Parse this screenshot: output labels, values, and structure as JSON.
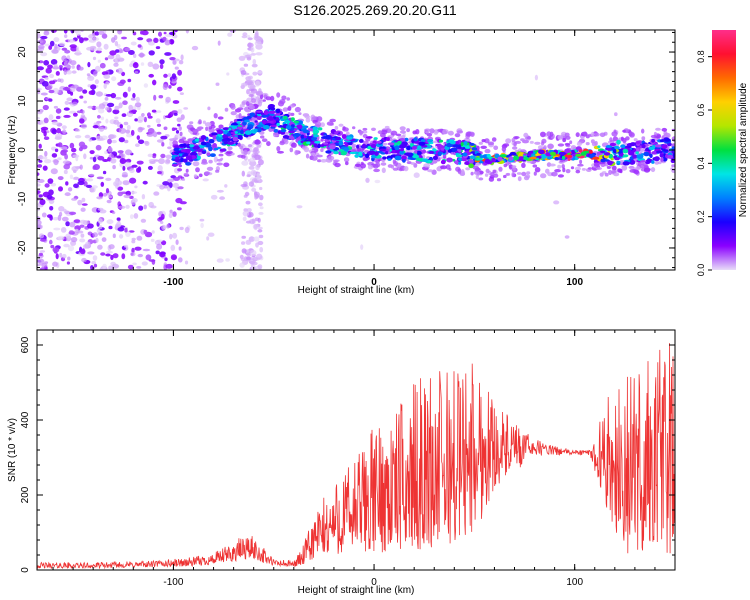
{
  "figure": {
    "title": "S126.2025.269.20.20.G11"
  },
  "chart_data": [
    {
      "type": "heatmap",
      "title": "S126.2025.269.20.20.G11",
      "xlabel": "Height of straight line (km)",
      "ylabel": "Frequency (Hz)",
      "xlim": [
        -168,
        150
      ],
      "ylim": [
        -24.5,
        24.5
      ],
      "xticks": [
        -100,
        0,
        100
      ],
      "yticks": [
        -20,
        -10,
        0,
        10,
        20
      ],
      "colorbar": {
        "label": "Normalized spectral amplitude",
        "range": [
          0.0,
          0.9
        ],
        "ticks": [
          0.0,
          0.2,
          0.4,
          0.6,
          0.8
        ],
        "colors": [
          "#e8dcf8",
          "#8a00ff",
          "#1a00ff",
          "#0080ff",
          "#00e5e5",
          "#00e040",
          "#b4e600",
          "#ffd000",
          "#ff6a00",
          "#ff1030",
          "#ff2e8a"
        ]
      },
      "signal_track": [
        {
          "height_km": -100,
          "freq_hz": -1.5,
          "amplitude": 0.25
        },
        {
          "height_km": -80,
          "freq_hz": 1.0,
          "amplitude": 0.35
        },
        {
          "height_km": -65,
          "freq_hz": 4.5,
          "amplitude": 0.35
        },
        {
          "height_km": -52,
          "freq_hz": 7.0,
          "amplitude": 0.25
        },
        {
          "height_km": -45,
          "freq_hz": 5.0,
          "amplitude": 0.4
        },
        {
          "height_km": -30,
          "freq_hz": 2.5,
          "amplitude": 0.4
        },
        {
          "height_km": -10,
          "freq_hz": 0.5,
          "amplitude": 0.35
        },
        {
          "height_km": 20,
          "freq_hz": 0.0,
          "amplitude": 0.35
        },
        {
          "height_km": 45,
          "freq_hz": -0.5,
          "amplitude": 0.4
        },
        {
          "height_km": 55,
          "freq_hz": -2.0,
          "amplitude": 0.85
        },
        {
          "height_km": 70,
          "freq_hz": -1.5,
          "amplitude": 0.6
        },
        {
          "height_km": 85,
          "freq_hz": -1.0,
          "amplitude": 0.7
        },
        {
          "height_km": 105,
          "freq_hz": -1.0,
          "amplitude": 0.9
        },
        {
          "height_km": 125,
          "freq_hz": -0.5,
          "amplitude": 0.35
        },
        {
          "height_km": 150,
          "freq_hz": 0.0,
          "amplitude": 0.25
        }
      ]
    },
    {
      "type": "line",
      "xlabel": "Height of straight line (km)",
      "ylabel": "SNR (10 * v/v)",
      "xlim": [
        -168,
        150
      ],
      "ylim": [
        0,
        640
      ],
      "xticks": [
        -100,
        0,
        100
      ],
      "yticks": [
        0,
        200,
        400,
        600
      ],
      "line_color": "#ee3333",
      "series": [
        {
          "name": "SNR",
          "x": [
            -168,
            -140,
            -110,
            -90,
            -80,
            -70,
            -65,
            -60,
            -55,
            -50,
            -40,
            -35,
            -30,
            -20,
            -10,
            0,
            10,
            20,
            30,
            40,
            50,
            55,
            60,
            70,
            80,
            90,
            100,
            108,
            115,
            125,
            135,
            145,
            150
          ],
          "y_low": [
            5,
            5,
            8,
            10,
            15,
            22,
            28,
            30,
            18,
            10,
            8,
            12,
            28,
            40,
            45,
            45,
            50,
            55,
            55,
            70,
            100,
            150,
            220,
            265,
            285,
            295,
            300,
            300,
            180,
            40,
            40,
            40,
            40
          ],
          "y_high": [
            20,
            20,
            25,
            35,
            45,
            75,
            95,
            90,
            60,
            30,
            25,
            70,
            150,
            240,
            300,
            390,
            420,
            500,
            540,
            555,
            575,
            530,
            460,
            390,
            350,
            330,
            320,
            320,
            450,
            520,
            580,
            640,
            600
          ]
        }
      ]
    }
  ]
}
